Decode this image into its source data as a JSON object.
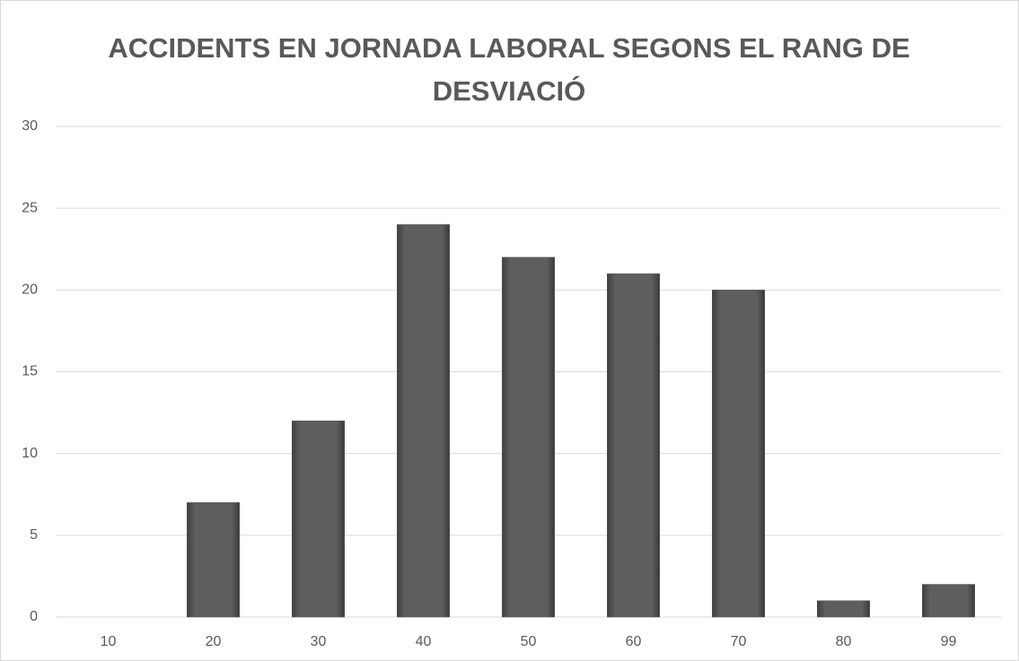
{
  "chart_data": {
    "type": "bar",
    "title": "ACCIDENTS EN JORNADA LABORAL SEGONS EL RANG DE DESVIACIÓ",
    "categories": [
      "10",
      "20",
      "30",
      "40",
      "50",
      "60",
      "70",
      "80",
      "99"
    ],
    "values": [
      0,
      7,
      12,
      24,
      22,
      21,
      20,
      1,
      2
    ],
    "color": "#595959",
    "ylim": [
      0,
      30
    ],
    "yticks": [
      0,
      5,
      10,
      15,
      20,
      25,
      30
    ],
    "grid": true
  }
}
